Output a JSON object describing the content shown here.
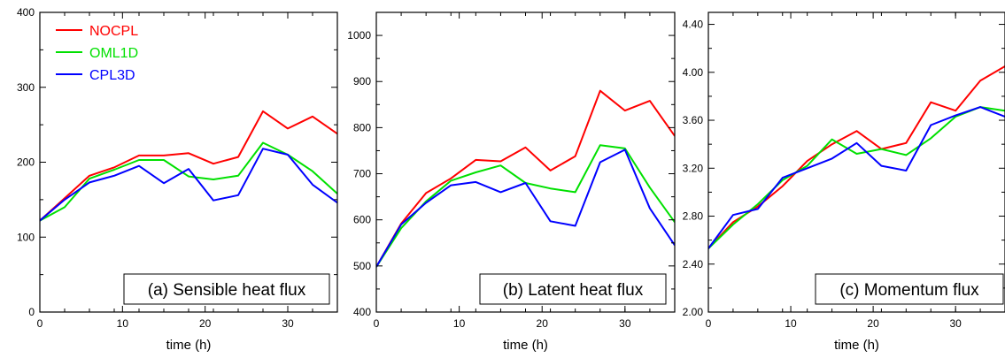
{
  "chart_data": [
    {
      "type": "line",
      "title": "(a) Sensible heat flux",
      "xlabel": "time (h)",
      "ylabel": "",
      "xlim": [
        0,
        36
      ],
      "ylim": [
        0,
        400
      ],
      "xticks": [
        0,
        10,
        20,
        30
      ],
      "xticks_minor": [
        3,
        6,
        9,
        12,
        15,
        18,
        21,
        24,
        27,
        30,
        33
      ],
      "yticks": [
        0,
        100,
        200,
        300,
        400
      ],
      "ytick_labels": [
        "0",
        "100",
        "200",
        "300",
        "400"
      ],
      "yaxis_side": "left",
      "legend": "top-left",
      "x": [
        0,
        3,
        6,
        9,
        12,
        15,
        18,
        21,
        24,
        27,
        30,
        33,
        36
      ],
      "series": [
        {
          "name": "NOCPL",
          "color": "#ff0000",
          "values": [
            122,
            152,
            182,
            193,
            209,
            209,
            212,
            198,
            207,
            268,
            245,
            261,
            238
          ]
        },
        {
          "name": "OML1D",
          "color": "#00e000",
          "values": [
            122,
            140,
            178,
            190,
            203,
            203,
            181,
            177,
            182,
            226,
            210,
            188,
            158
          ]
        },
        {
          "name": "CPL3D",
          "color": "#0000ff",
          "values": [
            122,
            150,
            173,
            182,
            195,
            172,
            191,
            149,
            156,
            218,
            210,
            170,
            146
          ]
        }
      ]
    },
    {
      "type": "line",
      "title": "(b) Latent heat flux",
      "xlabel": "time (h)",
      "ylabel": "",
      "xlim": [
        0,
        36
      ],
      "ylim": [
        400,
        1050
      ],
      "xticks": [
        0,
        10,
        20,
        30
      ],
      "xticks_minor": [
        3,
        6,
        9,
        12,
        15,
        18,
        21,
        24,
        27,
        30,
        33
      ],
      "yticks": [
        400,
        500,
        600,
        700,
        800,
        900,
        1000
      ],
      "ytick_labels": [
        "400",
        "500",
        "600",
        "700",
        "800",
        "900",
        "1000"
      ],
      "yaxis_side": "left",
      "x": [
        0,
        3,
        6,
        9,
        12,
        15,
        18,
        21,
        24,
        27,
        30,
        33,
        36
      ],
      "series": [
        {
          "name": "NOCPL",
          "color": "#ff0000",
          "values": [
            498,
            592,
            658,
            690,
            730,
            727,
            757,
            707,
            738,
            880,
            837,
            858,
            782
          ]
        },
        {
          "name": "OML1D",
          "color": "#00e000",
          "values": [
            498,
            582,
            640,
            685,
            703,
            718,
            680,
            668,
            660,
            762,
            755,
            670,
            595
          ]
        },
        {
          "name": "CPL3D",
          "color": "#0000ff",
          "values": [
            498,
            590,
            637,
            675,
            682,
            660,
            680,
            597,
            587,
            725,
            752,
            625,
            545
          ]
        }
      ]
    },
    {
      "type": "line",
      "title": "(c) Momentum flux",
      "xlabel": "time (h)",
      "ylabel": "",
      "xlim": [
        0,
        36
      ],
      "ylim": [
        2.0,
        4.5
      ],
      "xticks": [
        0,
        10,
        20,
        30
      ],
      "xticks_minor": [
        3,
        6,
        9,
        12,
        15,
        18,
        21,
        24,
        27,
        30,
        33
      ],
      "yticks": [
        2.0,
        2.4,
        2.8,
        3.2,
        3.6,
        4.0,
        4.4
      ],
      "ytick_labels": [
        "2.00",
        "2.40",
        "2.80",
        "3.20",
        "3.60",
        "4.00",
        "4.40"
      ],
      "yaxis_side": "left",
      "x": [
        0,
        3,
        6,
        9,
        12,
        15,
        18,
        21,
        24,
        27,
        30,
        33,
        36
      ],
      "series": [
        {
          "name": "NOCPL",
          "color": "#ff0000",
          "values": [
            2.53,
            2.75,
            2.88,
            3.05,
            3.26,
            3.4,
            3.51,
            3.36,
            3.41,
            3.75,
            3.68,
            3.93,
            4.05
          ]
        },
        {
          "name": "OML1D",
          "color": "#00e000",
          "values": [
            2.53,
            2.73,
            2.9,
            3.1,
            3.22,
            3.44,
            3.32,
            3.36,
            3.31,
            3.45,
            3.63,
            3.71,
            3.68
          ]
        },
        {
          "name": "CPL3D",
          "color": "#0000ff",
          "values": [
            2.53,
            2.81,
            2.86,
            3.12,
            3.2,
            3.28,
            3.41,
            3.22,
            3.18,
            3.56,
            3.64,
            3.71,
            3.63
          ]
        }
      ]
    }
  ]
}
